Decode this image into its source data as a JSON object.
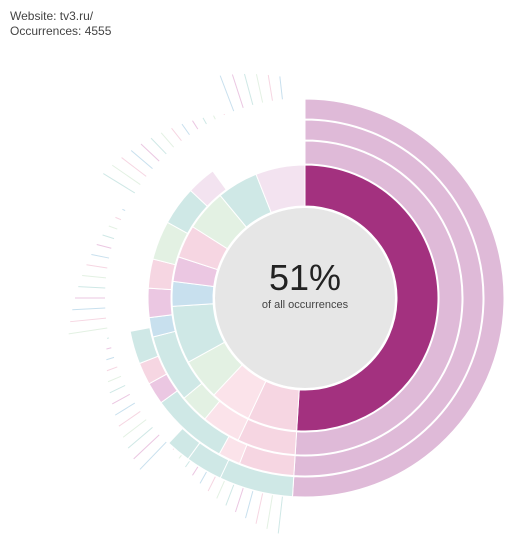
{
  "header": {
    "website_line": "Website: tv3.ru/",
    "occurrences_line": "Occurrences: 4555"
  },
  "chart_data": {
    "type": "sunburst",
    "website": "tv3.ru/",
    "occurrences": 4555,
    "center_label": {
      "percentage": "51%",
      "caption": "of all occurrences"
    },
    "highlighted_share": 0.51,
    "highlighted_color": "#a3317f",
    "ring_colors": {
      "selected_path": "#a3317f",
      "selected_descendants": "#dfbad8",
      "pink": "#f6d6e2",
      "teal": "#cfe8e6",
      "blue": "#c8e0ee",
      "green": "#e3f1e3",
      "mauve": "#ebc7e2"
    },
    "rings": [
      {
        "level": 1,
        "segments": [
          {
            "share": 0.51,
            "role": "selected",
            "color": "#a3317f"
          },
          {
            "share": 0.06,
            "color": "#f6d6e2"
          },
          {
            "share": 0.05,
            "color": "#fbe3ea"
          },
          {
            "share": 0.05,
            "color": "#e3f1e3"
          },
          {
            "share": 0.07,
            "color": "#cfe8e6"
          },
          {
            "share": 0.03,
            "color": "#c8e0ee"
          },
          {
            "share": 0.03,
            "color": "#ebc7e2"
          },
          {
            "share": 0.04,
            "color": "#f6d6e2"
          },
          {
            "share": 0.05,
            "color": "#e3f1e3"
          },
          {
            "share": 0.05,
            "color": "#cfe8e6"
          },
          {
            "share": 0.06,
            "color": "#f3e3f0"
          }
        ]
      },
      {
        "level": 2,
        "segments": [
          {
            "share": 0.51,
            "role": "descendant",
            "color": "#dfbad8"
          },
          {
            "share": 0.06,
            "color": "#f6d6e2"
          },
          {
            "share": 0.04,
            "color": "#fbe3ea"
          },
          {
            "share": 0.03,
            "color": "#e3f1e3"
          },
          {
            "share": 0.07,
            "color": "#cfe8e6"
          },
          {
            "share": 0.02,
            "color": "#c8e0ee"
          },
          {
            "share": 0.03,
            "color": "#ebc7e2"
          },
          {
            "share": 0.03,
            "color": "#f6d6e2"
          },
          {
            "share": 0.04,
            "color": "#e3f1e3"
          },
          {
            "share": 0.04,
            "color": "#cfe8e6"
          },
          {
            "share": 0.03,
            "color": "#f3e3f0"
          }
        ]
      },
      {
        "level": 3,
        "segments": [
          {
            "share": 0.51,
            "role": "descendant",
            "color": "#dfbad8"
          },
          {
            "share": 0.05,
            "color": "#f6d6e2"
          },
          {
            "share": 0.02,
            "color": "#fbe3ea"
          },
          {
            "share": 0.07,
            "color": "#cfe8e6"
          },
          {
            "share": 0.02,
            "color": "#ebc7e2"
          },
          {
            "share": 0.02,
            "color": "#f6d6e2"
          },
          {
            "share": 0.03,
            "color": "#cfe8e6"
          }
        ]
      },
      {
        "level": 4,
        "segments": [
          {
            "share": 0.51,
            "role": "descendant",
            "color": "#dfbad8"
          },
          {
            "share": 0.03,
            "color": "#f6d6e2"
          },
          {
            "share": 0.06,
            "color": "#cfe8e6"
          },
          {
            "share": 0.02,
            "color": "#cfe8e6"
          }
        ]
      },
      {
        "level": 5,
        "segments": [
          {
            "share": 0.51,
            "role": "descendant",
            "color": "#dfbad8"
          },
          {
            "share": 0.06,
            "color": "#cfe8e6"
          }
        ]
      }
    ],
    "legend": "none"
  }
}
